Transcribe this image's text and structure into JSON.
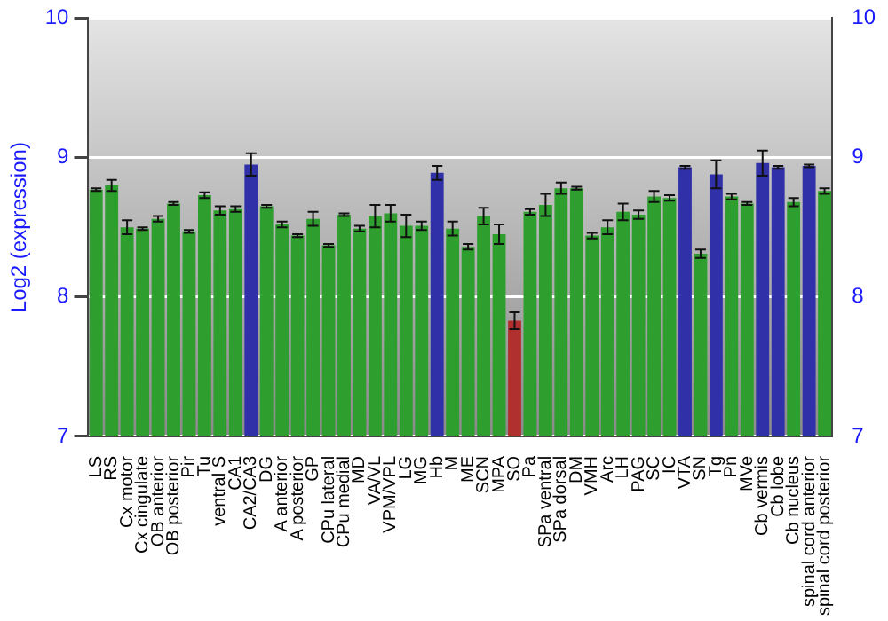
{
  "chart_data": {
    "type": "bar",
    "ylabel": "Log2 (expression)",
    "categories": [
      "LS",
      "RS",
      "Cx motor",
      "Cx cingulate",
      "OB anterior",
      "OB posterior",
      "Pir",
      "Tu",
      "ventral S",
      "CA1",
      "CA2/CA3",
      "DG",
      "A anterior",
      "A posterior",
      "GP",
      "CPu lateral",
      "CPu medial",
      "MD",
      "VA/VL",
      "VPM/VPL",
      "LG",
      "MG",
      "Hb",
      "M",
      "ME",
      "SCN",
      "MPA",
      "SO",
      "Pa",
      "SPa ventral",
      "SPa dorsal",
      "DM",
      "VMH",
      "Arc",
      "LH",
      "PAG",
      "SC",
      "IC",
      "VTA",
      "SN",
      "Tg",
      "Pn",
      "MVe",
      "Cb vermis",
      "Cb lobe",
      "Cb nucleus",
      "spinal cord anterior",
      "spinal cord posterior"
    ],
    "values": [
      8.77,
      8.8,
      8.5,
      8.49,
      8.56,
      8.67,
      8.47,
      8.73,
      8.62,
      8.63,
      8.95,
      8.65,
      8.52,
      8.44,
      8.56,
      8.37,
      8.59,
      8.49,
      8.58,
      8.6,
      8.51,
      8.51,
      8.89,
      8.49,
      8.36,
      8.58,
      8.45,
      7.83,
      8.61,
      8.66,
      8.78,
      8.78,
      8.44,
      8.5,
      8.61,
      8.59,
      8.72,
      8.71,
      8.93,
      8.31,
      8.88,
      8.72,
      8.67,
      8.96,
      8.93,
      8.68,
      8.94,
      8.76
    ],
    "errors": [
      0.01,
      0.04,
      0.05,
      0.01,
      0.02,
      0.01,
      0.01,
      0.02,
      0.03,
      0.02,
      0.08,
      0.01,
      0.02,
      0.01,
      0.05,
      0.01,
      0.01,
      0.02,
      0.08,
      0.06,
      0.08,
      0.03,
      0.05,
      0.05,
      0.02,
      0.06,
      0.07,
      0.06,
      0.02,
      0.08,
      0.04,
      0.01,
      0.02,
      0.05,
      0.06,
      0.03,
      0.04,
      0.02,
      0.01,
      0.03,
      0.1,
      0.02,
      0.01,
      0.09,
      0.01,
      0.03,
      0.01,
      0.02
    ],
    "colors": [
      "#2e9e2e",
      "#2e9e2e",
      "#2e9e2e",
      "#2e9e2e",
      "#2e9e2e",
      "#2e9e2e",
      "#2e9e2e",
      "#2e9e2e",
      "#2e9e2e",
      "#2e9e2e",
      "#3030a8",
      "#2e9e2e",
      "#2e9e2e",
      "#2e9e2e",
      "#2e9e2e",
      "#2e9e2e",
      "#2e9e2e",
      "#2e9e2e",
      "#2e9e2e",
      "#2e9e2e",
      "#2e9e2e",
      "#2e9e2e",
      "#3030a8",
      "#2e9e2e",
      "#2e9e2e",
      "#2e9e2e",
      "#2e9e2e",
      "#b03030",
      "#2e9e2e",
      "#2e9e2e",
      "#2e9e2e",
      "#2e9e2e",
      "#2e9e2e",
      "#2e9e2e",
      "#2e9e2e",
      "#2e9e2e",
      "#2e9e2e",
      "#2e9e2e",
      "#3030a8",
      "#2e9e2e",
      "#3030a8",
      "#2e9e2e",
      "#2e9e2e",
      "#3030a8",
      "#3030a8",
      "#2e9e2e",
      "#3030a8",
      "#2e9e2e"
    ],
    "ylim": [
      7,
      10
    ],
    "yticks": [
      7,
      8,
      9,
      10
    ],
    "y2lim": [
      7,
      10
    ],
    "y2ticks": [
      7,
      8,
      9,
      10
    ],
    "grid": "y",
    "legend": false
  }
}
